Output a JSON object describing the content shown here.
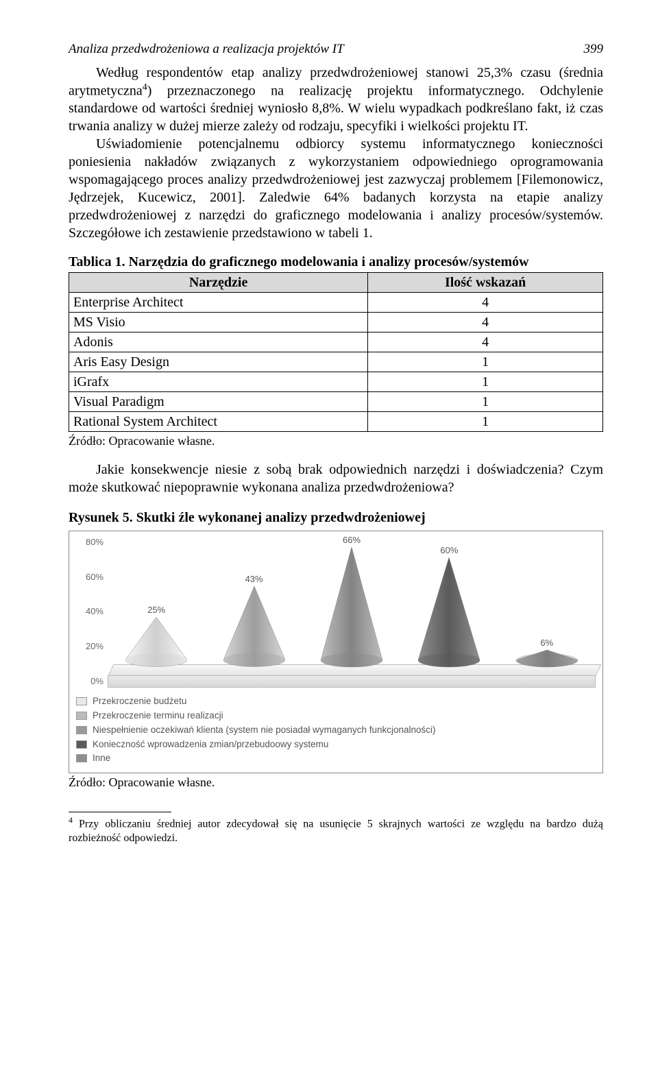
{
  "header": {
    "running_title": "Analiza przedwdrożeniowa a realizacja projektów IT",
    "page_number": "399"
  },
  "paragraphs": {
    "p1": "Według respondentów etap analizy przedwdrożeniowej stanowi 25,3% czasu (średnia arytmetyczna",
    "p1_after_sup": ") przeznaczonego na realizację projektu informatycznego. Odchylenie standardowe od wartości średniej wyniosło 8,8%. W wielu wypadkach podkreślano fakt, iż czas trwania analizy w dużej mierze zależy od rodzaju, specyfiki i wielkości projektu IT.",
    "p2": "Uświadomienie potencjalnemu odbiorcy systemu informatycznego konieczności poniesienia nakładów związanych z wykorzystaniem odpowiedniego oprogramowania wspomagającego proces analizy przedwdrożeniowej jest zazwyczaj problemem [Filemonowicz, Jędrzejek, Kucewicz, 2001]. Zaledwie 64% badanych korzysta na etapie analizy przedwdrożeniowej z narzędzi do graficznego modelowania i analizy procesów/systemów. Szczegółowe ich zestawienie przedstawiono w tabeli 1.",
    "p3": "Jakie konsekwencje niesie z sobą brak odpowiednich narzędzi i doświadczenia? Czym może skutkować niepoprawnie wykonana analiza przedwdrożeniowa?"
  },
  "table1": {
    "caption": "Tablica 1. Narzędzia do graficznego modelowania i analizy procesów/systemów",
    "headers": [
      "Narzędzie",
      "Ilość wskazań"
    ],
    "rows": [
      [
        "Enterprise Architect",
        "4"
      ],
      [
        "MS Visio",
        "4"
      ],
      [
        "Adonis",
        "4"
      ],
      [
        "Aris Easy Design",
        "1"
      ],
      [
        "iGrafx",
        "1"
      ],
      [
        "Visual Paradigm",
        "1"
      ],
      [
        "Rational System Architect",
        "1"
      ]
    ],
    "source": "Źródło: Opracowanie własne."
  },
  "figure5": {
    "caption": "Rysunek 5. Skutki źle wykonanej analizy przedwdrożeniowej",
    "y_ticks": [
      "80%",
      "60%",
      "40%",
      "20%",
      "0%"
    ],
    "cones": [
      {
        "label": "25%",
        "value": 25,
        "light": "#f6f6f6",
        "dark": "#cfcfcf"
      },
      {
        "label": "43%",
        "value": 43,
        "light": "#d7d7d7",
        "dark": "#9d9d9d"
      },
      {
        "label": "66%",
        "value": 66,
        "light": "#bfbfbf",
        "dark": "#838383"
      },
      {
        "label": "60%",
        "value": 60,
        "light": "#8f8f8f",
        "dark": "#5a5a5a"
      },
      {
        "label": "6%",
        "value": 6,
        "light": "#b6b6b6",
        "dark": "#7e7e7e"
      }
    ],
    "legend": [
      {
        "color": "#e9e9e9",
        "text": "Przekroczenie budżetu"
      },
      {
        "color": "#bcbcbc",
        "text": "Przekroczenie terminu realizacji"
      },
      {
        "color": "#9a9a9a",
        "text": "Niespełnienie oczekiwań klienta (system nie posiadał wymaganych funkcjonalności)"
      },
      {
        "color": "#5a5a5a",
        "text": "Konieczność wprowadzenia zmian/przebudoowy systemu"
      },
      {
        "color": "#8e8e8e",
        "text": "Inne"
      }
    ],
    "source": "Źródło: Opracowanie własne."
  },
  "footnote": {
    "marker": "4",
    "text": "Przy obliczaniu średniej autor zdecydował się na usunięcie 5 skrajnych wartości ze względu na bardzo dużą rozbieżność odpowiedzi."
  }
}
